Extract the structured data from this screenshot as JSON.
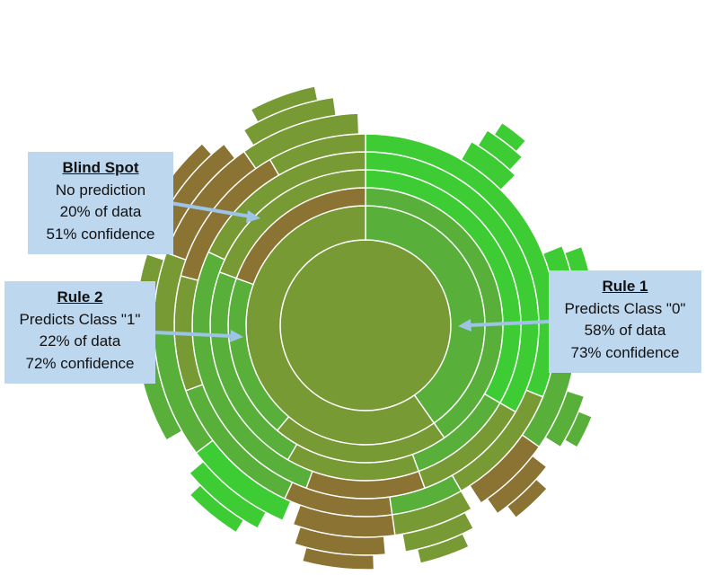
{
  "colors": {
    "brown": "#8b7333",
    "olive": "#789a35",
    "green_mid": "#58b03a",
    "green_bright": "#3dcc33",
    "callout_bg": "#bdd7ee",
    "arrow": "#9dc3e6",
    "ring_stroke": "#ffffff"
  },
  "sunburst": {
    "segments": [
      {
        "ring": 1,
        "from": 0,
        "to": 360,
        "color": "olive"
      },
      {
        "ring": 2,
        "from": 0,
        "to": 145,
        "color": "green_mid"
      },
      {
        "ring": 2,
        "from": 145,
        "to": 360,
        "color": "olive"
      },
      {
        "ring": 3,
        "from": 0,
        "to": 145,
        "color": "green_mid"
      },
      {
        "ring": 3,
        "from": 145,
        "to": 220,
        "color": "olive"
      },
      {
        "ring": 3,
        "from": 220,
        "to": 290,
        "color": "green_mid"
      },
      {
        "ring": 3,
        "from": 290,
        "to": 360,
        "color": "brown"
      },
      {
        "ring": 4,
        "from": 0,
        "to": 120,
        "color": "green_bright"
      },
      {
        "ring": 4,
        "from": 120,
        "to": 160,
        "color": "green_mid"
      },
      {
        "ring": 4,
        "from": 160,
        "to": 210,
        "color": "olive"
      },
      {
        "ring": 4,
        "from": 210,
        "to": 290,
        "color": "green_mid"
      },
      {
        "ring": 4,
        "from": 290,
        "to": 360,
        "color": "olive"
      },
      {
        "ring": 5,
        "from": 0,
        "to": 120,
        "color": "green_bright"
      },
      {
        "ring": 5,
        "from": 120,
        "to": 160,
        "color": "olive"
      },
      {
        "ring": 5,
        "from": 160,
        "to": 200,
        "color": "brown"
      },
      {
        "ring": 5,
        "from": 200,
        "to": 295,
        "color": "green_mid"
      },
      {
        "ring": 5,
        "from": 295,
        "to": 360,
        "color": "olive"
      },
      {
        "ring": 6,
        "from": 0,
        "to": 112,
        "color": "green_bright"
      },
      {
        "ring": 6,
        "from": 112,
        "to": 150,
        "color": "olive"
      },
      {
        "ring": 6,
        "from": 150,
        "to": 172,
        "color": "green_mid"
      },
      {
        "ring": 6,
        "from": 172,
        "to": 205,
        "color": "brown"
      },
      {
        "ring": 6,
        "from": 205,
        "to": 250,
        "color": "green_mid"
      },
      {
        "ring": 6,
        "from": 250,
        "to": 285,
        "color": "olive"
      },
      {
        "ring": 6,
        "from": 285,
        "to": 330,
        "color": "brown"
      },
      {
        "ring": 6,
        "from": 330,
        "to": 360,
        "color": "olive"
      },
      {
        "ring": 7,
        "from": 30,
        "to": 45,
        "color": "green_bright"
      },
      {
        "ring": 7,
        "from": 68,
        "to": 82,
        "color": "green_bright"
      },
      {
        "ring": 7,
        "from": 100,
        "to": 125,
        "color": "green_mid"
      },
      {
        "ring": 7,
        "from": 125,
        "to": 147,
        "color": "brown"
      },
      {
        "ring": 7,
        "from": 150,
        "to": 172,
        "color": "olive"
      },
      {
        "ring": 7,
        "from": 172,
        "to": 200,
        "color": "brown"
      },
      {
        "ring": 7,
        "from": 203,
        "to": 233,
        "color": "green_bright"
      },
      {
        "ring": 7,
        "from": 233,
        "to": 268,
        "color": "green_mid"
      },
      {
        "ring": 7,
        "from": 268,
        "to": 290,
        "color": "olive"
      },
      {
        "ring": 7,
        "from": 290,
        "to": 325,
        "color": "brown"
      },
      {
        "ring": 7,
        "from": 325,
        "to": 358,
        "color": "olive"
      },
      {
        "ring": 8,
        "from": 32,
        "to": 43,
        "color": "green_bright"
      },
      {
        "ring": 8,
        "from": 70,
        "to": 80,
        "color": "green_bright"
      },
      {
        "ring": 8,
        "from": 108,
        "to": 122,
        "color": "green_mid"
      },
      {
        "ring": 8,
        "from": 128,
        "to": 145,
        "color": "brown"
      },
      {
        "ring": 8,
        "from": 152,
        "to": 170,
        "color": "olive"
      },
      {
        "ring": 8,
        "from": 175,
        "to": 198,
        "color": "brown"
      },
      {
        "ring": 8,
        "from": 208,
        "to": 230,
        "color": "green_bright"
      },
      {
        "ring": 8,
        "from": 240,
        "to": 262,
        "color": "green_mid"
      },
      {
        "ring": 8,
        "from": 272,
        "to": 288,
        "color": "olive"
      },
      {
        "ring": 8,
        "from": 295,
        "to": 322,
        "color": "brown"
      },
      {
        "ring": 8,
        "from": 328,
        "to": 352,
        "color": "olive"
      },
      {
        "ring": 9,
        "from": 34,
        "to": 41,
        "color": "green_bright"
      },
      {
        "ring": 9,
        "from": 112,
        "to": 120,
        "color": "green_mid"
      },
      {
        "ring": 9,
        "from": 132,
        "to": 142,
        "color": "brown"
      },
      {
        "ring": 9,
        "from": 155,
        "to": 167,
        "color": "olive"
      },
      {
        "ring": 9,
        "from": 178,
        "to": 195,
        "color": "brown"
      },
      {
        "ring": 9,
        "from": 212,
        "to": 226,
        "color": "green_bright"
      },
      {
        "ring": 9,
        "from": 300,
        "to": 318,
        "color": "brown"
      },
      {
        "ring": 9,
        "from": 332,
        "to": 348,
        "color": "olive"
      }
    ]
  },
  "callouts": {
    "blind_spot": {
      "title": "Blind Spot",
      "line1": "No prediction",
      "line2": "20% of data",
      "line3": "51% confidence"
    },
    "rule2": {
      "title": "Rule 2",
      "line1": "Predicts Class \"1\"",
      "line2": "22% of data",
      "line3": "72% confidence"
    },
    "rule1": {
      "title": "Rule 1",
      "line1": "Predicts Class \"0\"",
      "line2": "58% of data",
      "line3": "73% confidence"
    }
  }
}
